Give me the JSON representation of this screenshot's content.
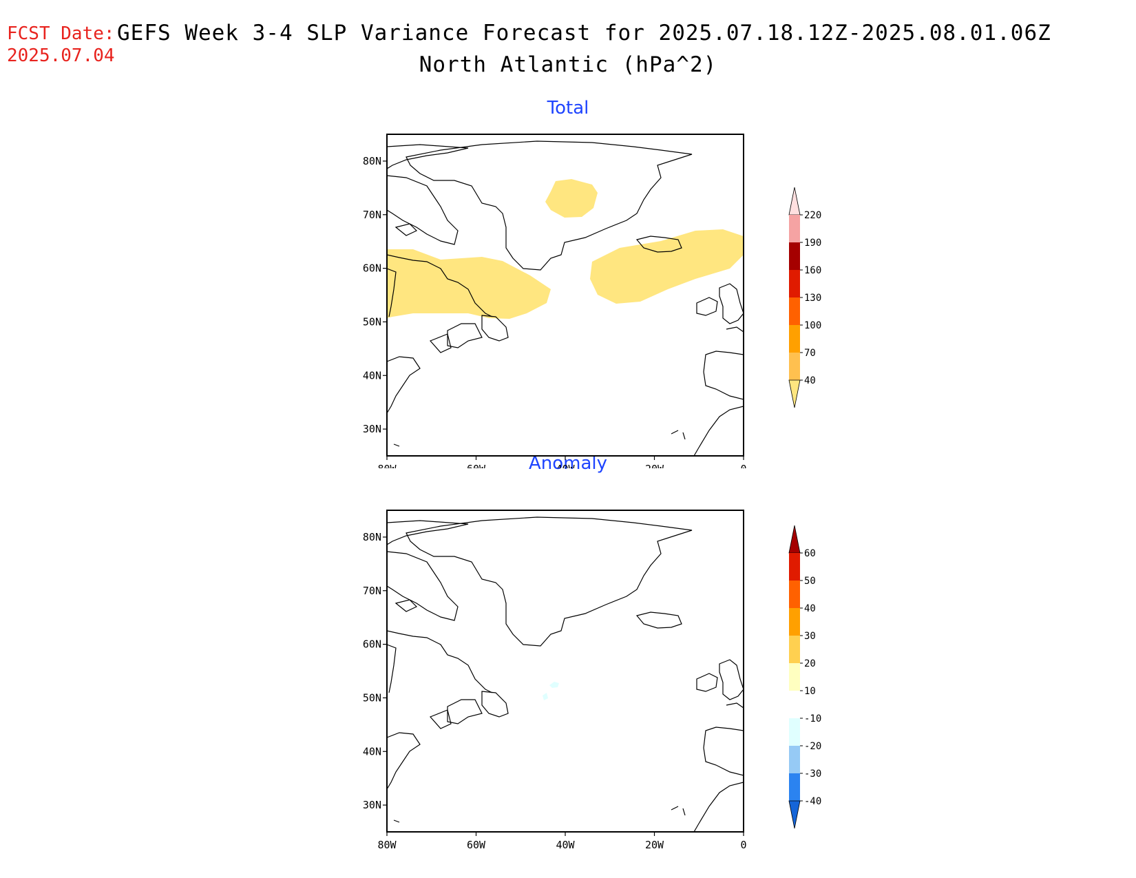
{
  "header": {
    "fcst_label": "FCST Date:",
    "fcst_date": "2025.07.04",
    "title": "GEFS Week 3-4 SLP Variance Forecast for 2025.07.18.12Z-2025.08.01.06Z",
    "subtitle": "North Atlantic (hPa^2)"
  },
  "map": {
    "lon_labels": [
      "80W",
      "60W",
      "40W",
      "20W",
      "0"
    ],
    "lat_labels": [
      "80N",
      "70N",
      "60N",
      "50N",
      "40N",
      "30N"
    ],
    "lon_range": [
      -80,
      0
    ],
    "lat_range": [
      25,
      85
    ],
    "land_color": "#ffffff",
    "coast_color": "#000000"
  },
  "panels": [
    {
      "id": "total",
      "title": "Total",
      "legend_levels": [
        "40",
        "70",
        "100",
        "130",
        "160",
        "190",
        "220"
      ],
      "legend_colors": [
        "#ffe680",
        "#ffc04f",
        "#ffa000",
        "#ff6100",
        "#e01b00",
        "#a50000",
        "#f5a3a3",
        "#ffe0e0"
      ],
      "shaded_regions": [
        {
          "name": "Labrador Sea to Newfoundland",
          "level": "40-70",
          "color": "#ffe680"
        },
        {
          "name": "Iceland to British Isles",
          "level": "40-70",
          "color": "#ffe680"
        },
        {
          "name": "Central Greenland",
          "level": "40-70",
          "color": "#ffe680"
        }
      ]
    },
    {
      "id": "anomaly",
      "title": "Anomaly",
      "legend_levels": [
        "-40",
        "-30",
        "-20",
        "-10",
        "10",
        "20",
        "30",
        "40",
        "50",
        "60"
      ],
      "legend_colors": [
        "#1565d8",
        "#2b83f0",
        "#96caf5",
        "#e0ffff",
        "#ffffff",
        "#ffffc0",
        "#ffd050",
        "#ffa000",
        "#ff6100",
        "#e01b00",
        "#a50000"
      ],
      "shaded_regions": [
        {
          "name": "Mid-Atlantic small patch",
          "level": "-10 to -20",
          "color": "#e0ffff"
        }
      ]
    }
  ]
}
